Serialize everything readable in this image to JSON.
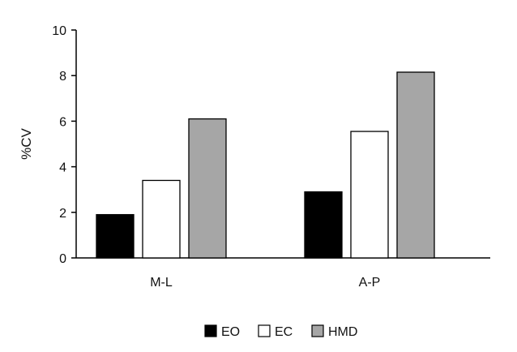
{
  "chart_data": {
    "type": "bar",
    "categories": [
      "M-L",
      "A-P"
    ],
    "series": [
      {
        "name": "EO",
        "values": [
          1.9,
          2.9
        ],
        "color": "#000000"
      },
      {
        "name": "EC",
        "values": [
          3.4,
          5.55
        ],
        "color": "#ffffff"
      },
      {
        "name": "HMD",
        "values": [
          6.1,
          8.15
        ],
        "color": "#a6a6a6"
      }
    ],
    "xlabel": "",
    "ylabel": "%CV",
    "ylim": [
      0,
      10
    ],
    "yticks": [
      0,
      2,
      4,
      6,
      8,
      10
    ],
    "grid": false,
    "legend_position": "bottom-center"
  }
}
